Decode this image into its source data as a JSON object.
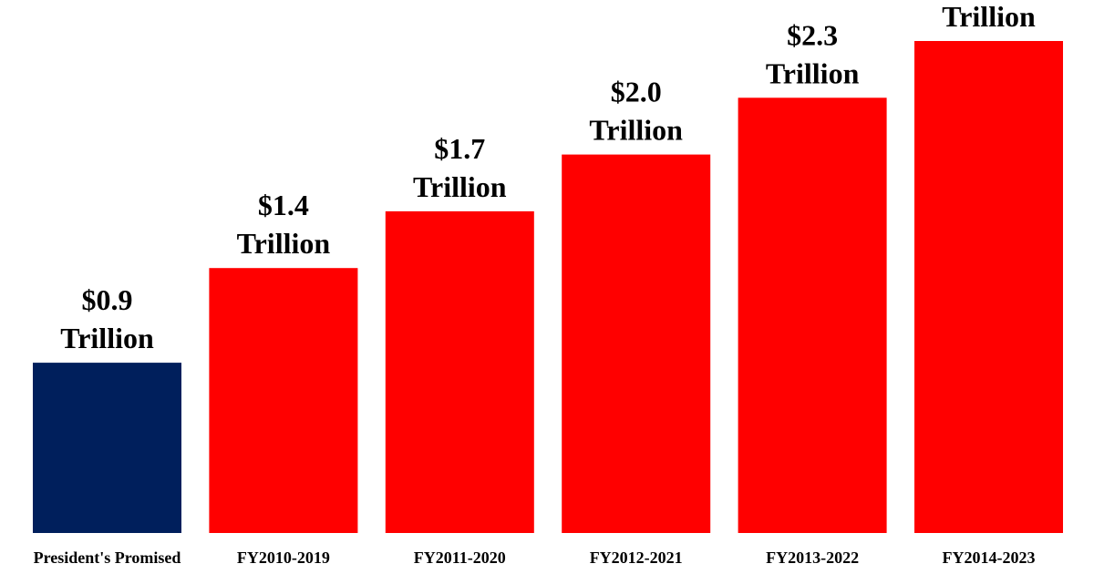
{
  "chart_data": {
    "type": "bar",
    "title": "",
    "xlabel": "",
    "ylabel": "",
    "categories": [
      "President's Promised",
      "FY2010-2019",
      "FY2011-2020",
      "FY2012-2021",
      "FY2013-2022",
      "FY2014-2023"
    ],
    "values": [
      0.9,
      1.4,
      1.7,
      2.0,
      2.3,
      2.6
    ],
    "value_labels": [
      "$0.9",
      "$1.4",
      "$1.7",
      "$2.0",
      "$2.3",
      ""
    ],
    "value_unit": "Trillion",
    "colors": [
      "#001f5c",
      "#ff0000",
      "#ff0000",
      "#ff0000",
      "#ff0000",
      "#ff0000"
    ],
    "ylim": [
      0,
      2.6
    ],
    "grid": false,
    "legend": "none"
  }
}
